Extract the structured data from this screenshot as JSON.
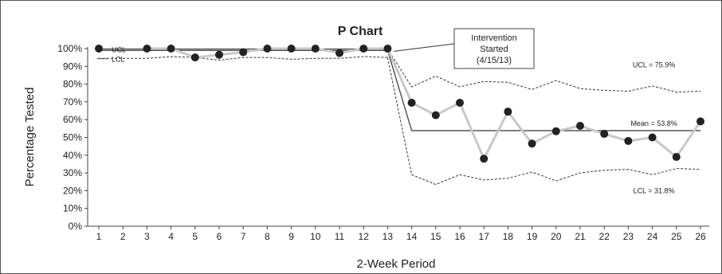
{
  "chart_data": {
    "type": "line",
    "title": "P Chart",
    "xlabel": "2-Week Period",
    "ylabel": "Percentage Tested",
    "ylim": [
      0,
      100
    ],
    "xlim": [
      1,
      26
    ],
    "categories": [
      "1",
      "2",
      "3",
      "4",
      "5",
      "6",
      "7",
      "8",
      "9",
      "10",
      "11",
      "12",
      "13",
      "14",
      "15",
      "16",
      "17",
      "18",
      "19",
      "20",
      "21",
      "22",
      "23",
      "24",
      "25",
      "26"
    ],
    "y_ticks": [
      "0%",
      "10%",
      "20%",
      "30%",
      "40%",
      "50%",
      "60%",
      "70%",
      "80%",
      "90%",
      "100%"
    ],
    "series": [
      {
        "values": [
          100,
          null,
          100,
          100,
          95,
          96.5,
          98,
          100,
          100,
          100,
          97.5,
          100,
          100,
          69.5,
          62.5,
          69.5,
          38,
          64.5,
          46.5,
          53.5,
          56.5,
          52,
          48,
          50,
          39,
          59
        ],
        "color": "#222222",
        "line_color": "#c8c8c8"
      }
    ],
    "control_limits": {
      "ucl_before": [
        99.8,
        99.8,
        99.8,
        99.8,
        99.8,
        99.8,
        99.8,
        99.8,
        99.8,
        99.8,
        99.8,
        99.8,
        99.8
      ],
      "lcl_before": [
        94.5,
        94.5,
        94.5,
        95.5,
        95,
        93.5,
        95,
        95,
        94,
        94.5,
        94.5,
        95.5,
        95
      ],
      "center_before": 99,
      "ucl_after": [
        78.5,
        84.5,
        78.5,
        81.5,
        81,
        77,
        82,
        77.5,
        76.5,
        76,
        79,
        75.5,
        76
      ],
      "lcl_after": [
        29,
        23.5,
        29,
        26,
        27,
        30.5,
        25.5,
        30,
        31.5,
        32,
        29,
        32.5,
        32
      ],
      "center_after": 53.8
    },
    "annotations": {
      "ucl_label": "UCL",
      "lcl_label": "LCL",
      "ucl_after_label": "UCL = 75.9%",
      "mean_after_label": "Mean = 53.8%",
      "lcl_after_label": "LCL = 31.8%",
      "intervention_lines": [
        "Intervention",
        "Started",
        "(4/15/13)"
      ]
    },
    "grid": false,
    "legend": "none"
  }
}
